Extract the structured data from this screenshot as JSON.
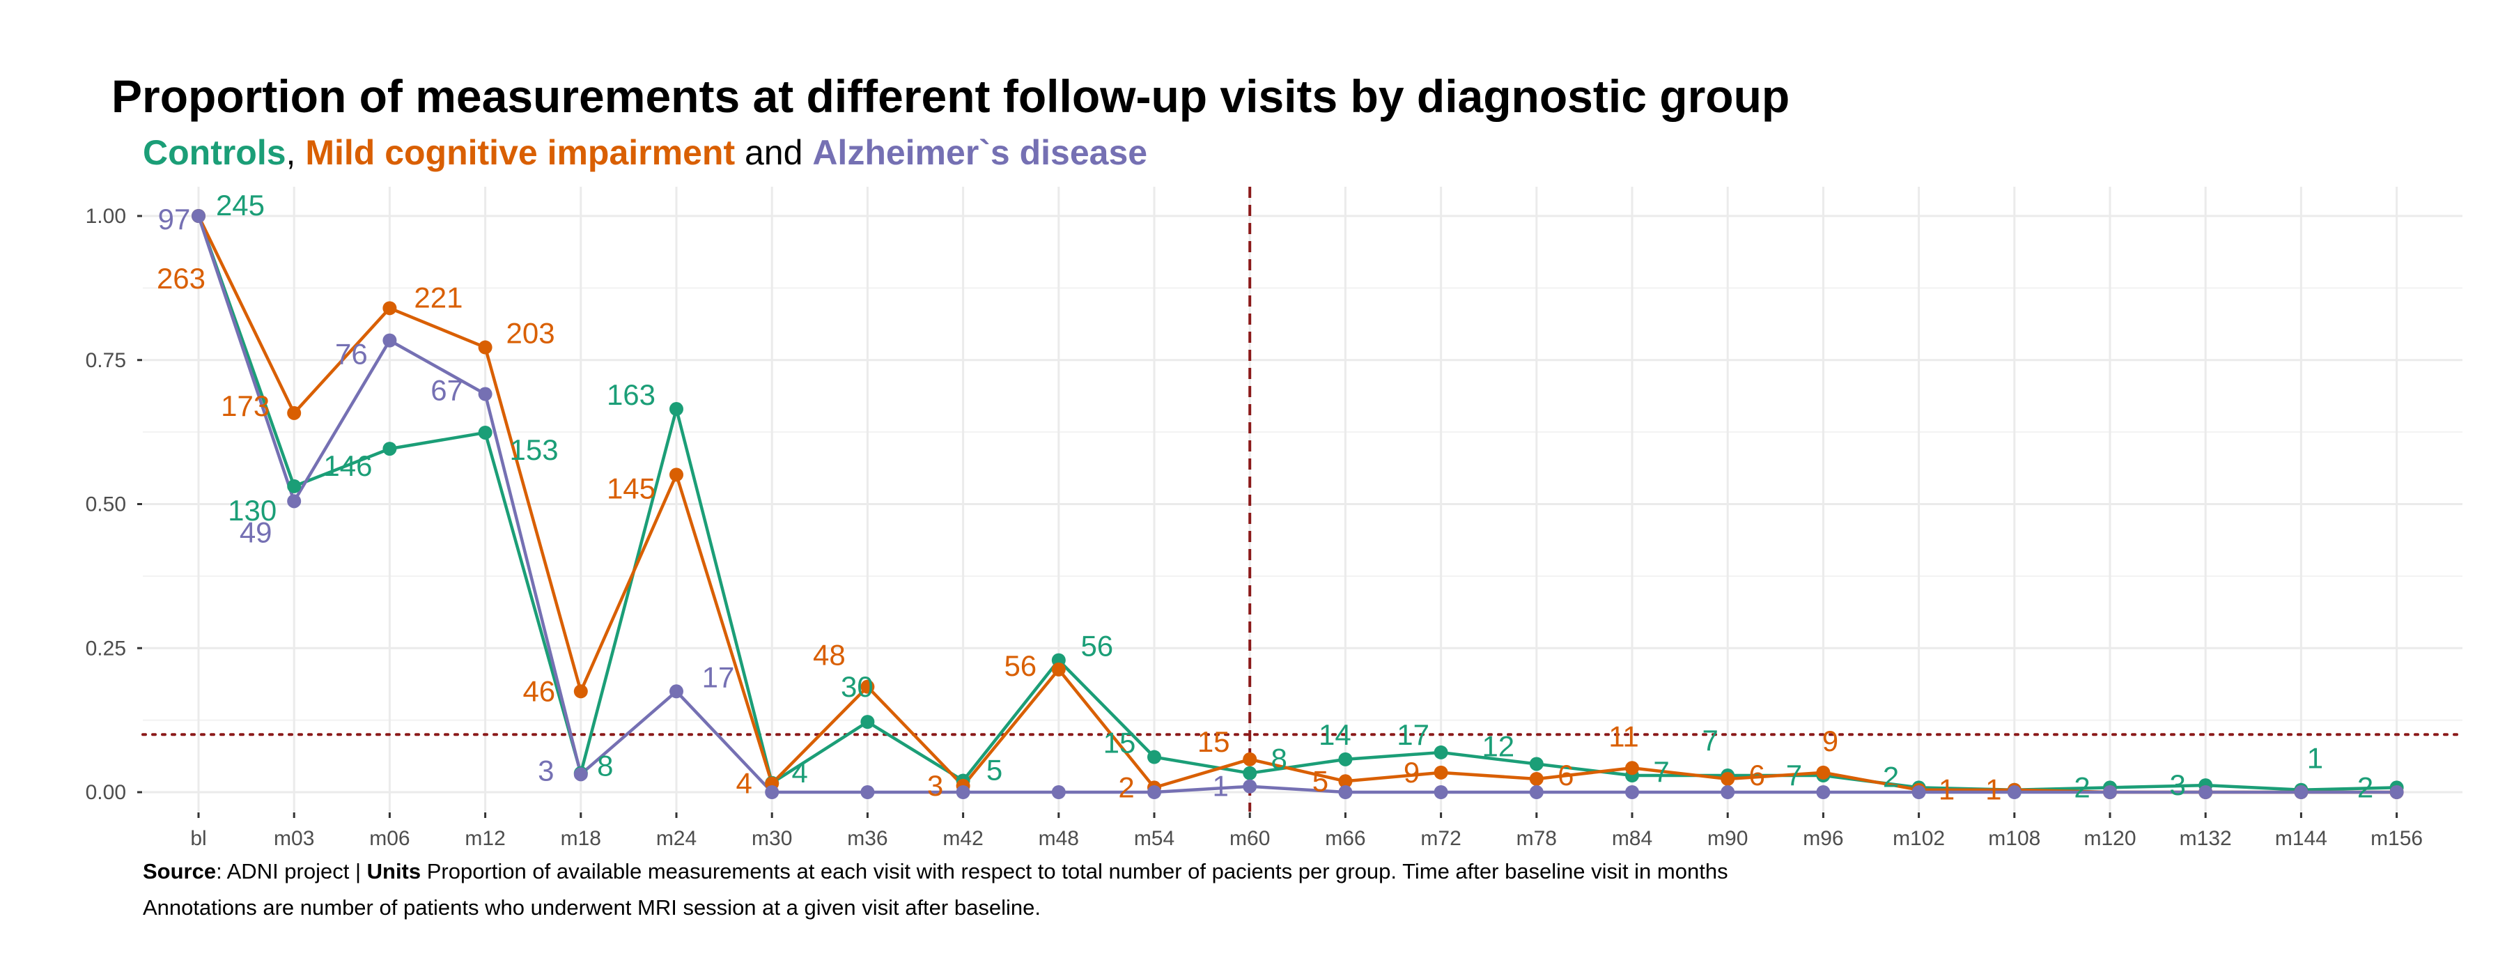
{
  "title": "Proportion of measurements at different follow-up visits by diagnostic group",
  "subtitle": {
    "controls": "Controls",
    "sep1": ", ",
    "mci": "Mild cognitive impairment",
    "sep2": " and ",
    "ad": "Alzheimer`s disease"
  },
  "caption": {
    "source_label": "Source",
    "source_text": ": ADNI project | ",
    "units_label": "Units",
    "units_text": " Proportion of available measurements at each visit with respect to total number of pacients per group. Time after baseline visit in months",
    "line2": "Annotations are number of patients who underwent MRI session at a given visit after baseline."
  },
  "colors": {
    "controls": "#1b9e77",
    "mci": "#d95f02",
    "ad": "#7570b3",
    "reference_lines": "#8b1a1a"
  },
  "chart_data": {
    "type": "line",
    "categories": [
      "bl",
      "m03",
      "m06",
      "m12",
      "m18",
      "m24",
      "m30",
      "m36",
      "m42",
      "m48",
      "m54",
      "m60",
      "m66",
      "m72",
      "m78",
      "m84",
      "m90",
      "m96",
      "m102",
      "m108",
      "m120",
      "m132",
      "m144",
      "m156"
    ],
    "y_ticks": [
      "0.00",
      "0.25",
      "0.50",
      "0.75",
      "1.00"
    ],
    "ylim": [
      0,
      1
    ],
    "grid": true,
    "legend": "subtitle (colored text)",
    "reference_lines": [
      {
        "type": "vertical",
        "style": "dashed",
        "at": "m60"
      },
      {
        "type": "horizontal",
        "style": "dotted",
        "at": 0.1
      }
    ],
    "series": [
      {
        "name": "Controls",
        "color": "#1b9e77",
        "values": [
          1.0,
          0.531,
          0.596,
          0.624,
          0.033,
          0.665,
          0.016,
          0.122,
          0.02,
          0.229,
          0.061,
          0.033,
          0.057,
          0.069,
          0.049,
          0.029,
          0.029,
          0.029,
          0.008,
          0.004,
          0.008,
          0.012,
          0.004,
          0.008
        ],
        "labels": [
          "245",
          "130",
          "146",
          "153",
          "8",
          "163",
          "4",
          "30",
          "5",
          "56",
          "15",
          "8",
          "14",
          "17",
          "12",
          "7",
          "7",
          "7",
          "2",
          "",
          "2",
          "3",
          "1",
          "2"
        ]
      },
      {
        "name": "Mild cognitive impairment",
        "color": "#d95f02",
        "values": [
          1.0,
          0.658,
          0.84,
          0.772,
          0.175,
          0.551,
          0.015,
          0.183,
          0.011,
          0.213,
          0.008,
          0.057,
          0.019,
          0.034,
          0.023,
          0.042,
          0.023,
          0.034,
          0.004,
          0.004,
          0.0,
          0.0,
          0.0,
          0.0
        ],
        "labels": [
          "263",
          "173",
          "221",
          "203",
          "46",
          "145",
          "4",
          "48",
          "3",
          "56",
          "2",
          "15",
          "5",
          "9",
          "6",
          "11",
          "6",
          "9",
          "1",
          "1",
          "",
          "",
          "",
          ""
        ]
      },
      {
        "name": "Alzheimer`s disease",
        "color": "#7570b3",
        "values": [
          1.0,
          0.505,
          0.784,
          0.691,
          0.031,
          0.175,
          0.0,
          0.0,
          0.0,
          0.0,
          0.0,
          0.01,
          0.0,
          0.0,
          0.0,
          0.0,
          0.0,
          0.0,
          0.0,
          0.0,
          0.0,
          0.0,
          0.0,
          0.0
        ],
        "labels": [
          "97",
          "49",
          "76",
          "67",
          "3",
          "17",
          "",
          "",
          "",
          "",
          "",
          "1",
          "",
          "",
          "",
          "",
          "",
          "",
          "",
          "",
          "",
          "",
          "",
          ""
        ]
      }
    ]
  }
}
